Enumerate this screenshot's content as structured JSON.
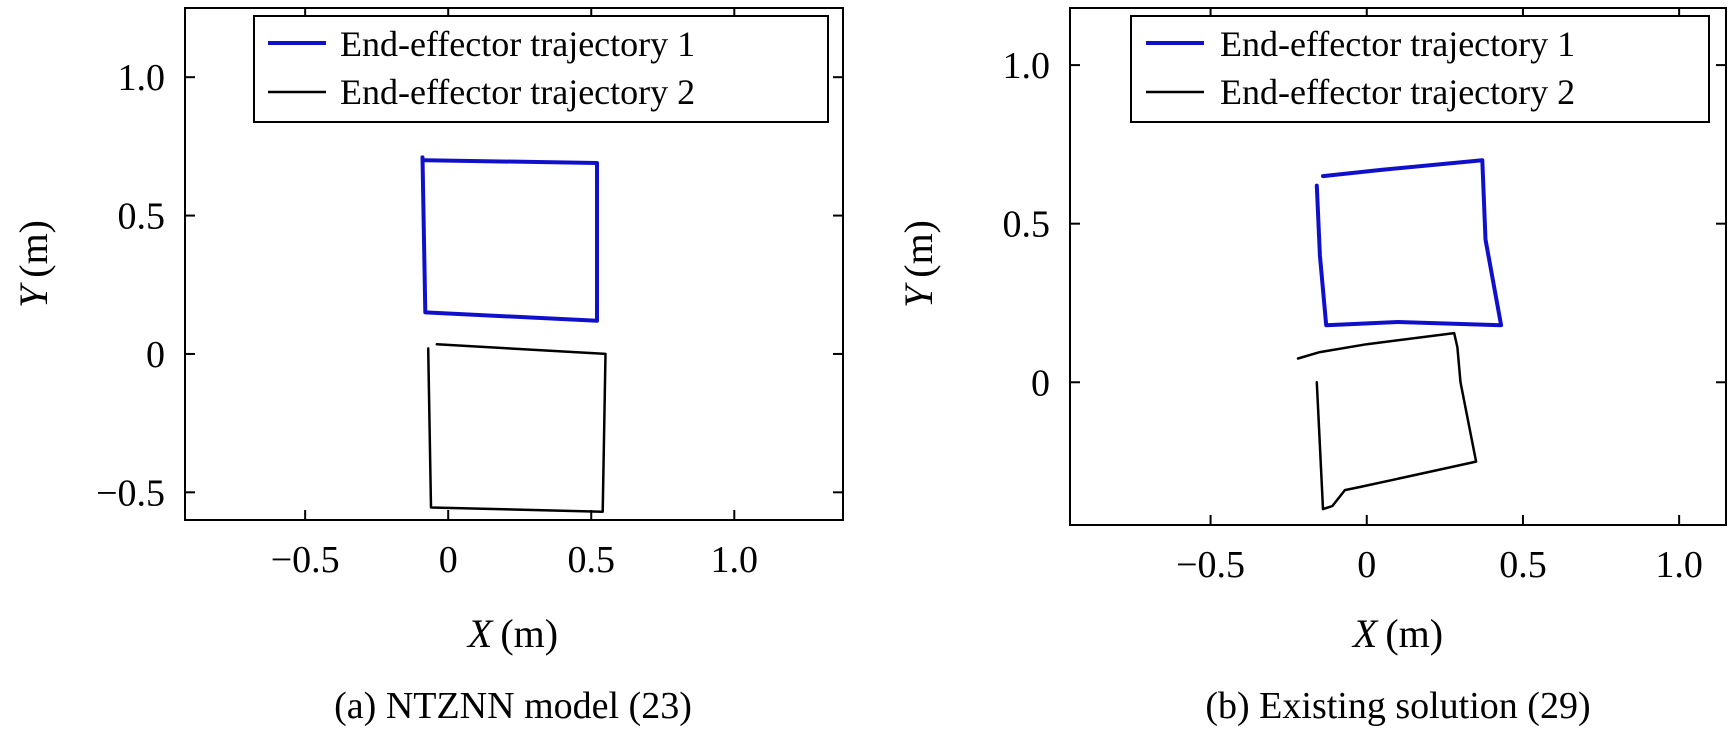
{
  "chart_data": [
    {
      "type": "line",
      "caption": "(a) NTZNN model (23)",
      "xlabel_var": "X",
      "xlabel_unit": "(m)",
      "ylabel_var": "Y",
      "ylabel_unit": "(m)",
      "xlim": [
        -0.92,
        1.38
      ],
      "ylim": [
        -0.6,
        1.25
      ],
      "xticks": [
        -0.5,
        0,
        0.5,
        1.0
      ],
      "xtick_labels": [
        "−0.5",
        "0",
        "0.5",
        "1.0"
      ],
      "yticks": [
        -0.5,
        0,
        0.5,
        1.0
      ],
      "ytick_labels": [
        "−0.5",
        "0",
        "0.5",
        "1.0"
      ],
      "grid": false,
      "legend_position": "top-right",
      "series": [
        {
          "name": "End-effector trajectory 1",
          "color": "#1010cc",
          "x": [
            -0.08,
            -0.08,
            0.52,
            0.52,
            -0.08,
            -0.09
          ],
          "y": [
            0.7,
            0.7,
            0.69,
            0.12,
            0.15,
            0.71
          ]
        },
        {
          "name": "End-effector trajectory 2",
          "color": "#000000",
          "x": [
            -0.04,
            0.55,
            0.54,
            -0.06,
            -0.07
          ],
          "y": [
            0.035,
            0.0,
            -0.57,
            -0.555,
            0.02
          ]
        }
      ]
    },
    {
      "type": "line",
      "caption": "(b) Existing solution (29)",
      "xlabel_var": "X",
      "xlabel_unit": "(m)",
      "ylabel_var": "Y",
      "ylabel_unit": "(m)",
      "xlim": [
        -0.95,
        1.15
      ],
      "ylim": [
        -0.45,
        1.18
      ],
      "xticks": [
        -0.5,
        0,
        0.5,
        1.0
      ],
      "xtick_labels": [
        "−0.5",
        "0",
        "0.5",
        "1.0"
      ],
      "yticks": [
        0,
        0.5,
        1.0
      ],
      "ytick_labels": [
        "0",
        "0.5",
        "1.0"
      ],
      "grid": false,
      "legend_position": "top-right",
      "series": [
        {
          "name": "End-effector trajectory 1",
          "color": "#1010cc",
          "x": [
            -0.14,
            0.05,
            0.37,
            0.38,
            0.43,
            0.1,
            -0.13,
            -0.15,
            -0.16
          ],
          "y": [
            0.65,
            0.67,
            0.7,
            0.45,
            0.18,
            0.19,
            0.18,
            0.4,
            0.62
          ]
        },
        {
          "name": "End-effector trajectory 2",
          "color": "#000000",
          "x": [
            -0.22,
            -0.15,
            0.0,
            0.28,
            0.29,
            0.3,
            0.35,
            0.12,
            -0.02,
            -0.07,
            -0.11,
            -0.14,
            -0.15,
            -0.16
          ],
          "y": [
            0.075,
            0.095,
            0.12,
            0.155,
            0.11,
            0.0,
            -0.25,
            -0.3,
            -0.33,
            -0.34,
            -0.39,
            -0.4,
            -0.2,
            0.0
          ]
        }
      ]
    }
  ]
}
